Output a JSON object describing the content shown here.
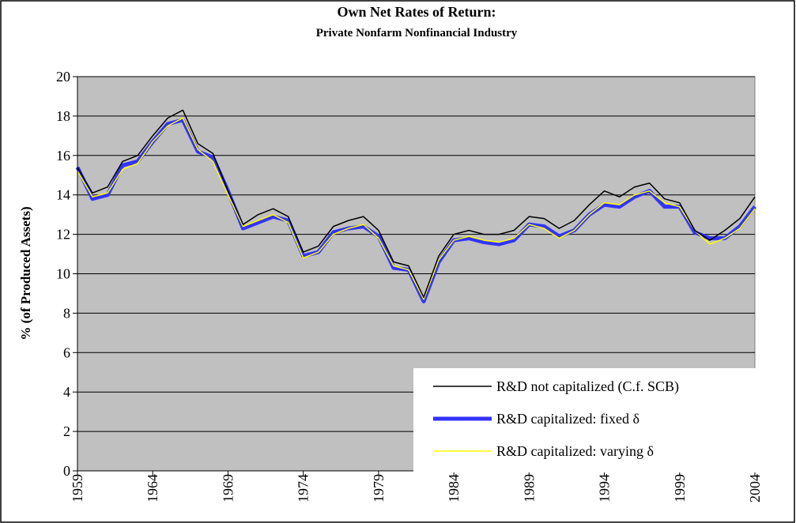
{
  "chart_data": {
    "type": "line",
    "title": "Own Net Rates of Return:",
    "subtitle": "Private Nonfarm Nonfinancial Industry",
    "y_label": "% (of Produced Assets)",
    "x": [
      1959,
      1960,
      1961,
      1962,
      1963,
      1964,
      1965,
      1966,
      1967,
      1968,
      1969,
      1970,
      1971,
      1972,
      1973,
      1974,
      1975,
      1976,
      1977,
      1978,
      1979,
      1980,
      1981,
      1982,
      1983,
      1984,
      1985,
      1986,
      1987,
      1988,
      1989,
      1990,
      1991,
      1992,
      1993,
      1994,
      1995,
      1996,
      1997,
      1998,
      1999,
      2000,
      2001,
      2002,
      2003,
      2004
    ],
    "xlim": [
      1959,
      2004
    ],
    "xticks": [
      1959,
      1964,
      1969,
      1974,
      1979,
      1984,
      1989,
      1994,
      1999,
      2004
    ],
    "ylim": [
      0,
      20
    ],
    "yticks": [
      0,
      2,
      4,
      6,
      8,
      10,
      12,
      14,
      16,
      18,
      20
    ],
    "grid": true,
    "legend": "lower right",
    "series": [
      {
        "name": "R&D not capitalized (C.f. SCB)",
        "color": "#000000",
        "values": [
          15.4,
          14.1,
          14.4,
          15.7,
          16.0,
          17.0,
          17.9,
          18.3,
          16.6,
          16.1,
          14.2,
          12.5,
          13.0,
          13.3,
          12.9,
          11.1,
          11.4,
          12.4,
          12.7,
          12.9,
          12.2,
          10.6,
          10.4,
          8.8,
          10.9,
          12.0,
          12.2,
          12.0,
          12.0,
          12.2,
          12.9,
          12.8,
          12.3,
          12.7,
          13.5,
          14.2,
          13.9,
          14.4,
          14.6,
          13.8,
          13.6,
          12.2,
          11.7,
          12.2,
          12.8,
          13.9
        ]
      },
      {
        "name": "R&D capitalized: fixed δ",
        "color": "#3333ff",
        "values": [
          15.4,
          13.8,
          14.0,
          15.5,
          15.7,
          16.7,
          17.6,
          17.8,
          16.2,
          15.9,
          14.2,
          12.3,
          12.6,
          12.9,
          12.7,
          10.9,
          11.1,
          12.1,
          12.3,
          12.4,
          11.9,
          10.3,
          10.2,
          8.6,
          10.6,
          11.7,
          11.8,
          11.6,
          11.5,
          11.7,
          12.5,
          12.4,
          11.9,
          12.2,
          13.0,
          13.5,
          13.4,
          13.9,
          14.2,
          13.4,
          13.4,
          12.1,
          11.8,
          11.8,
          12.4,
          13.4
        ]
      },
      {
        "name": "R&D capitalized: varying δ",
        "color": "#ffff00",
        "values": [
          15.2,
          13.9,
          14.1,
          15.3,
          15.6,
          16.7,
          17.5,
          17.9,
          16.3,
          15.7,
          14.0,
          12.4,
          12.7,
          13.0,
          12.6,
          10.8,
          11.1,
          12.0,
          12.3,
          12.5,
          11.8,
          10.4,
          10.2,
          8.7,
          10.7,
          11.7,
          11.9,
          11.7,
          11.6,
          11.8,
          12.5,
          12.3,
          11.8,
          12.2,
          13.0,
          13.6,
          13.5,
          14.0,
          14.2,
          13.6,
          13.4,
          12.2,
          11.5,
          11.8,
          12.3,
          13.3
        ]
      }
    ]
  }
}
